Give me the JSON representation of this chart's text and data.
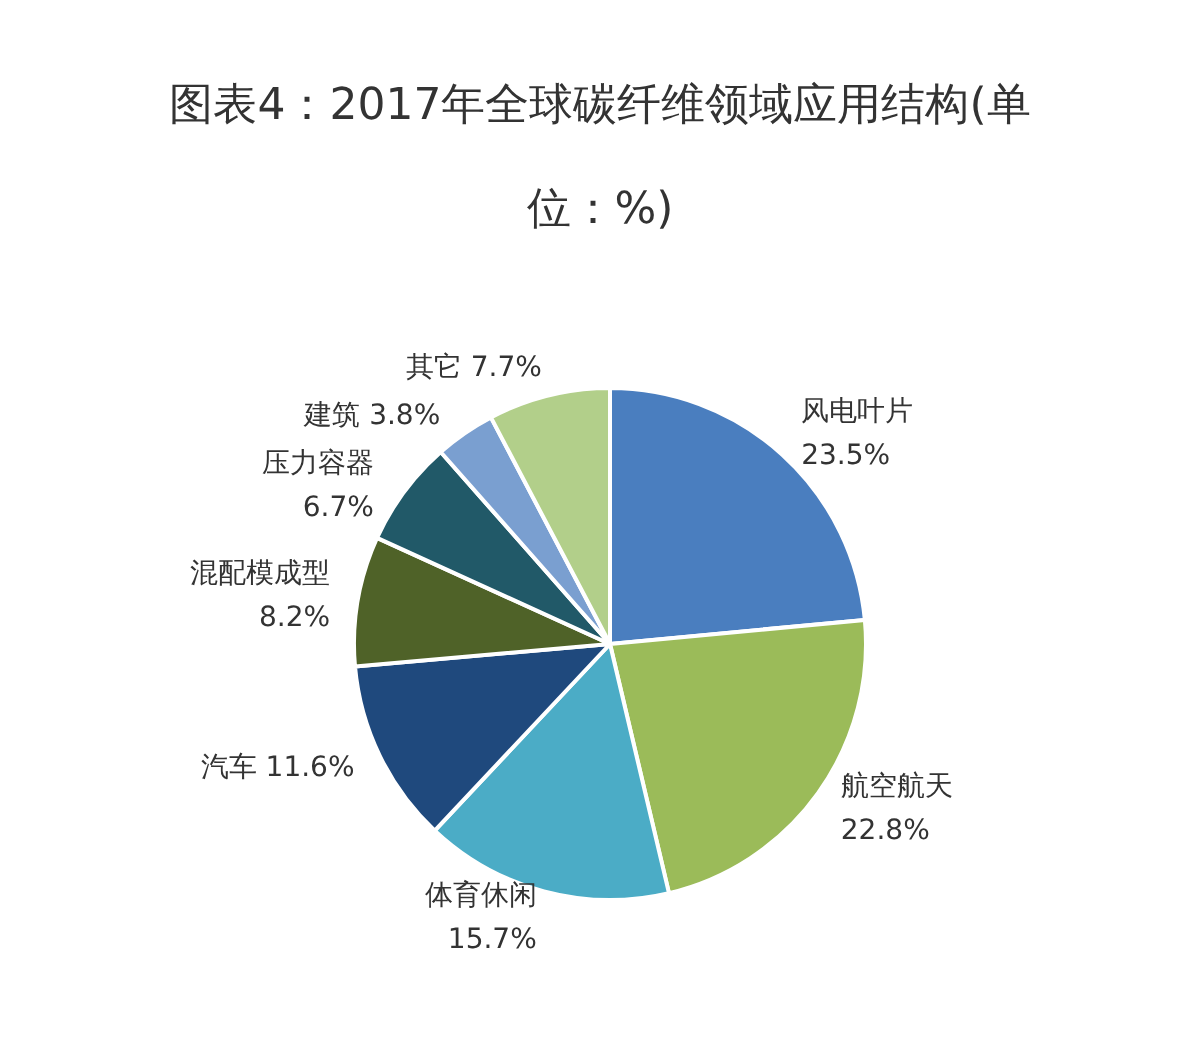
{
  "chart_data": {
    "type": "pie",
    "title": "图表4：2017年全球碳纤维领域应用结构(单位：%)",
    "categories": [
      "风电叶片",
      "航空航天",
      "体育休闲",
      "汽车",
      "混配模成型",
      "压力容器",
      "建筑",
      "其它"
    ],
    "values": [
      23.5,
      22.8,
      15.7,
      11.6,
      8.2,
      6.7,
      3.8,
      7.7
    ],
    "value_labels": [
      "23.5%",
      "22.8%",
      "15.7%",
      "11.6%",
      "8.2%",
      "6.7%",
      "3.8%",
      "7.7%"
    ],
    "colors": [
      "#4a7ebf",
      "#9bbb59",
      "#4bacc6",
      "#1f497d",
      "#4f6228",
      "#215968",
      "#7a9fd0",
      "#b2cf8a"
    ],
    "legend": false
  }
}
